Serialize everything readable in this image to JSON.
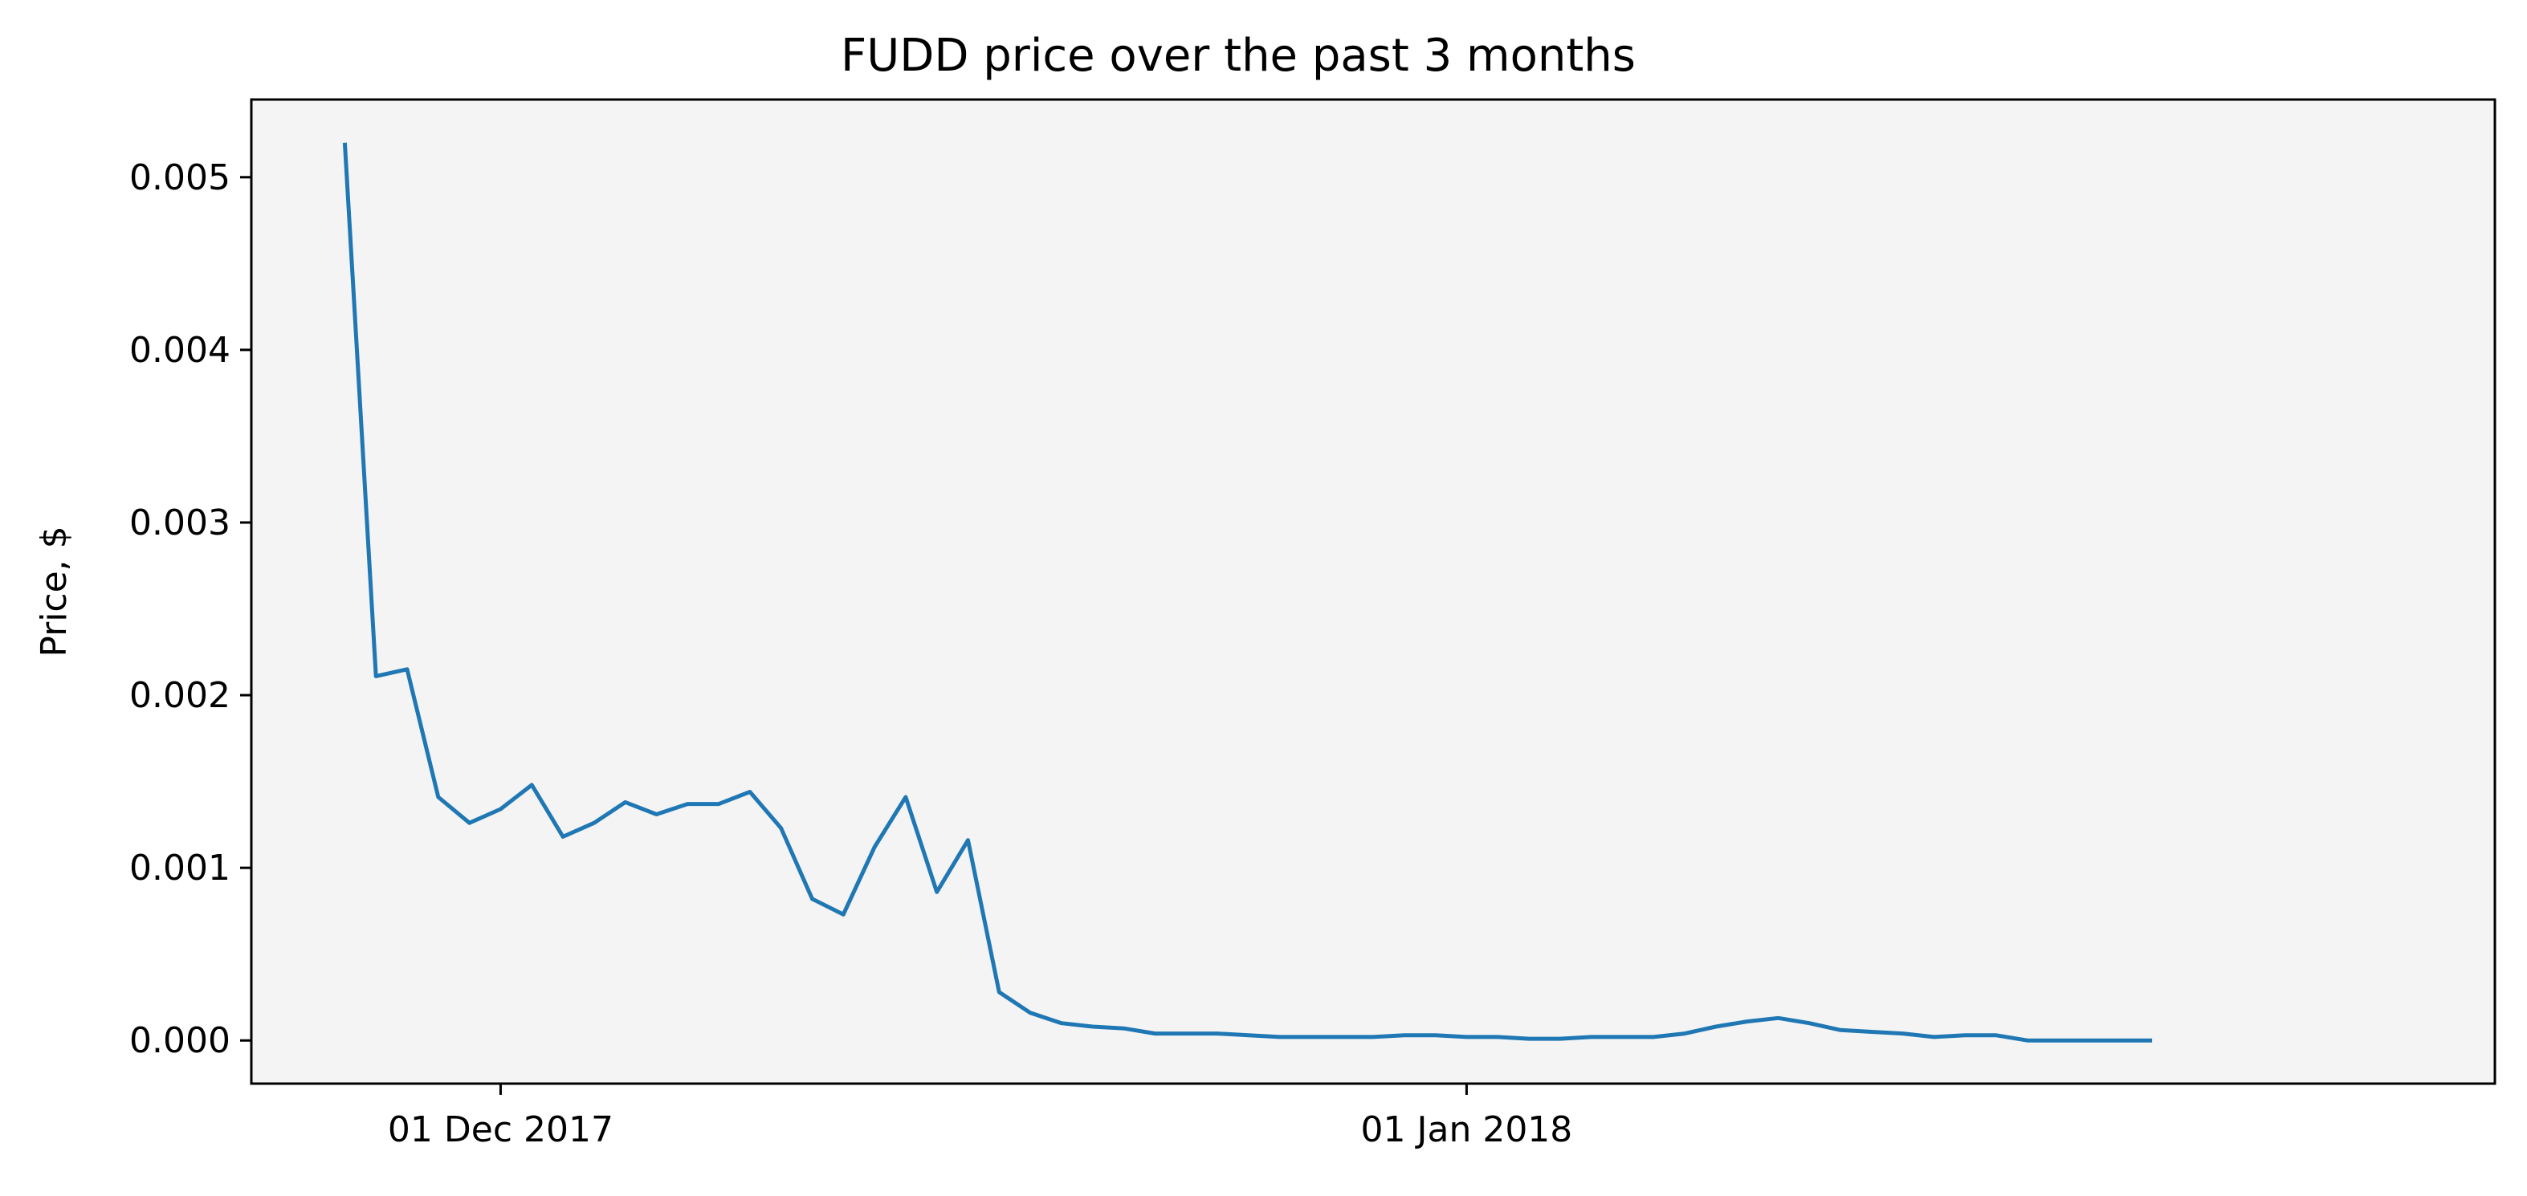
{
  "chart_data": {
    "type": "line",
    "title": "FUDD price over the past 3 months",
    "xlabel": "",
    "ylabel": "Price, $",
    "x_ticks": [
      {
        "label": "01 Dec 2017",
        "date": "2017-12-01"
      },
      {
        "label": "01 Jan 2018",
        "date": "2018-01-01"
      }
    ],
    "y_ticks": [
      "0.000",
      "0.001",
      "0.002",
      "0.003",
      "0.004",
      "0.005"
    ],
    "ylim": [
      -0.00025,
      0.00545
    ],
    "xlim": [
      "2017-11-23",
      "2018-02-03"
    ],
    "grid": false,
    "legend": "none",
    "colors": {
      "line": "#1f77b4",
      "plot_background": "#f4f4f4",
      "axes": "#000000"
    },
    "series": [
      {
        "x": [
          "2017-11-26",
          "2017-11-27",
          "2017-11-28",
          "2017-11-29",
          "2017-11-30",
          "2017-12-01",
          "2017-12-02",
          "2017-12-03",
          "2017-12-04",
          "2017-12-05",
          "2017-12-06",
          "2017-12-07",
          "2017-12-08",
          "2017-12-09",
          "2017-12-10",
          "2017-12-11",
          "2017-12-12",
          "2017-12-13",
          "2017-12-14",
          "2017-12-15",
          "2017-12-16",
          "2017-12-17",
          "2017-12-18",
          "2017-12-19",
          "2017-12-20",
          "2017-12-21",
          "2017-12-22",
          "2017-12-23",
          "2017-12-24",
          "2017-12-25",
          "2017-12-26",
          "2017-12-27",
          "2017-12-28",
          "2017-12-29",
          "2017-12-30",
          "2017-12-31",
          "2018-01-01",
          "2018-01-02",
          "2018-01-03",
          "2018-01-04",
          "2018-01-05",
          "2018-01-06",
          "2018-01-07",
          "2018-01-08",
          "2018-01-09",
          "2018-01-10",
          "2018-01-11",
          "2018-01-12",
          "2018-01-13",
          "2018-01-14",
          "2018-01-15",
          "2018-01-16",
          "2018-01-17",
          "2018-01-18",
          "2018-01-19",
          "2018-01-20",
          "2018-01-21",
          "2018-01-22",
          "2018-01-23"
        ],
        "values": [
          0.0052,
          0.00211,
          0.00215,
          0.00141,
          0.00126,
          0.00134,
          0.00148,
          0.00118,
          0.00126,
          0.00138,
          0.00131,
          0.00137,
          0.00137,
          0.00144,
          0.00123,
          0.00082,
          0.00073,
          0.00112,
          0.00141,
          0.00086,
          0.00116,
          0.00028,
          0.00016,
          0.0001,
          8e-05,
          7e-05,
          4e-05,
          4e-05,
          4e-05,
          3e-05,
          2e-05,
          2e-05,
          2e-05,
          2e-05,
          3e-05,
          3e-05,
          2e-05,
          2e-05,
          1e-05,
          1e-05,
          2e-05,
          2e-05,
          2e-05,
          4e-05,
          8e-05,
          0.00011,
          0.00013,
          0.0001,
          6e-05,
          5e-05,
          4e-05,
          2e-05,
          3e-05,
          3e-05,
          0.0,
          0.0,
          0.0,
          0.0,
          0.0
        ]
      }
    ]
  }
}
